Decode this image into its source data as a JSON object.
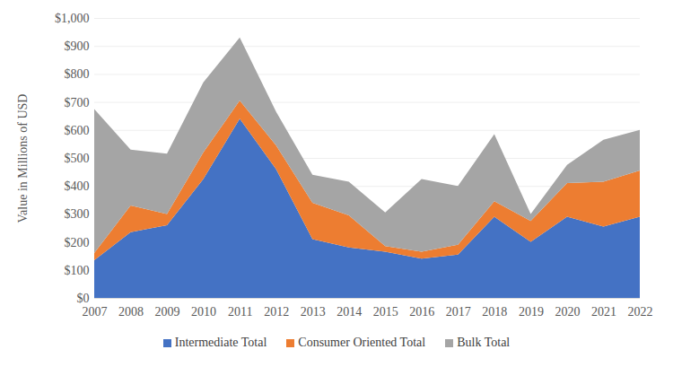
{
  "chart_data": {
    "type": "area",
    "stacked": true,
    "grid": true,
    "legend": "bottom",
    "y_label": "Value in Millions of USD",
    "x": [
      2007,
      2008,
      2009,
      2010,
      2011,
      2012,
      2013,
      2014,
      2015,
      2016,
      2017,
      2018,
      2019,
      2020,
      2021,
      2022
    ],
    "xlim": [
      2007,
      2022
    ],
    "xticks": [
      2007,
      2008,
      2009,
      2010,
      2011,
      2012,
      2013,
      2014,
      2015,
      2016,
      2017,
      2018,
      2019,
      2020,
      2021,
      2022
    ],
    "ylim": [
      0,
      1000
    ],
    "yticks": [
      {
        "value": 0,
        "label": "$0"
      },
      {
        "value": 100,
        "label": "$100"
      },
      {
        "value": 200,
        "label": "$200"
      },
      {
        "value": 300,
        "label": "$300"
      },
      {
        "value": 400,
        "label": "$400"
      },
      {
        "value": 500,
        "label": "$500"
      },
      {
        "value": 600,
        "label": "$600"
      },
      {
        "value": 700,
        "label": "$700"
      },
      {
        "value": 800,
        "label": "$800"
      },
      {
        "value": 900,
        "label": "$900"
      },
      {
        "value": 1000,
        "label": "$1,000"
      }
    ],
    "series": [
      {
        "name": "Intermediate Total",
        "color": "#4472c4",
        "values": [
          135,
          235,
          260,
          425,
          640,
          460,
          210,
          180,
          165,
          140,
          155,
          290,
          200,
          290,
          255,
          290
        ]
      },
      {
        "name": "Consumer Oriented Total",
        "color": "#ed7d31",
        "values": [
          25,
          95,
          40,
          95,
          65,
          85,
          130,
          115,
          20,
          25,
          35,
          55,
          75,
          120,
          160,
          165
        ]
      },
      {
        "name": "Bulk Total",
        "color": "#a5a5a5",
        "values": [
          515,
          200,
          215,
          250,
          225,
          120,
          100,
          120,
          120,
          260,
          210,
          240,
          25,
          65,
          150,
          145
        ]
      }
    ]
  }
}
